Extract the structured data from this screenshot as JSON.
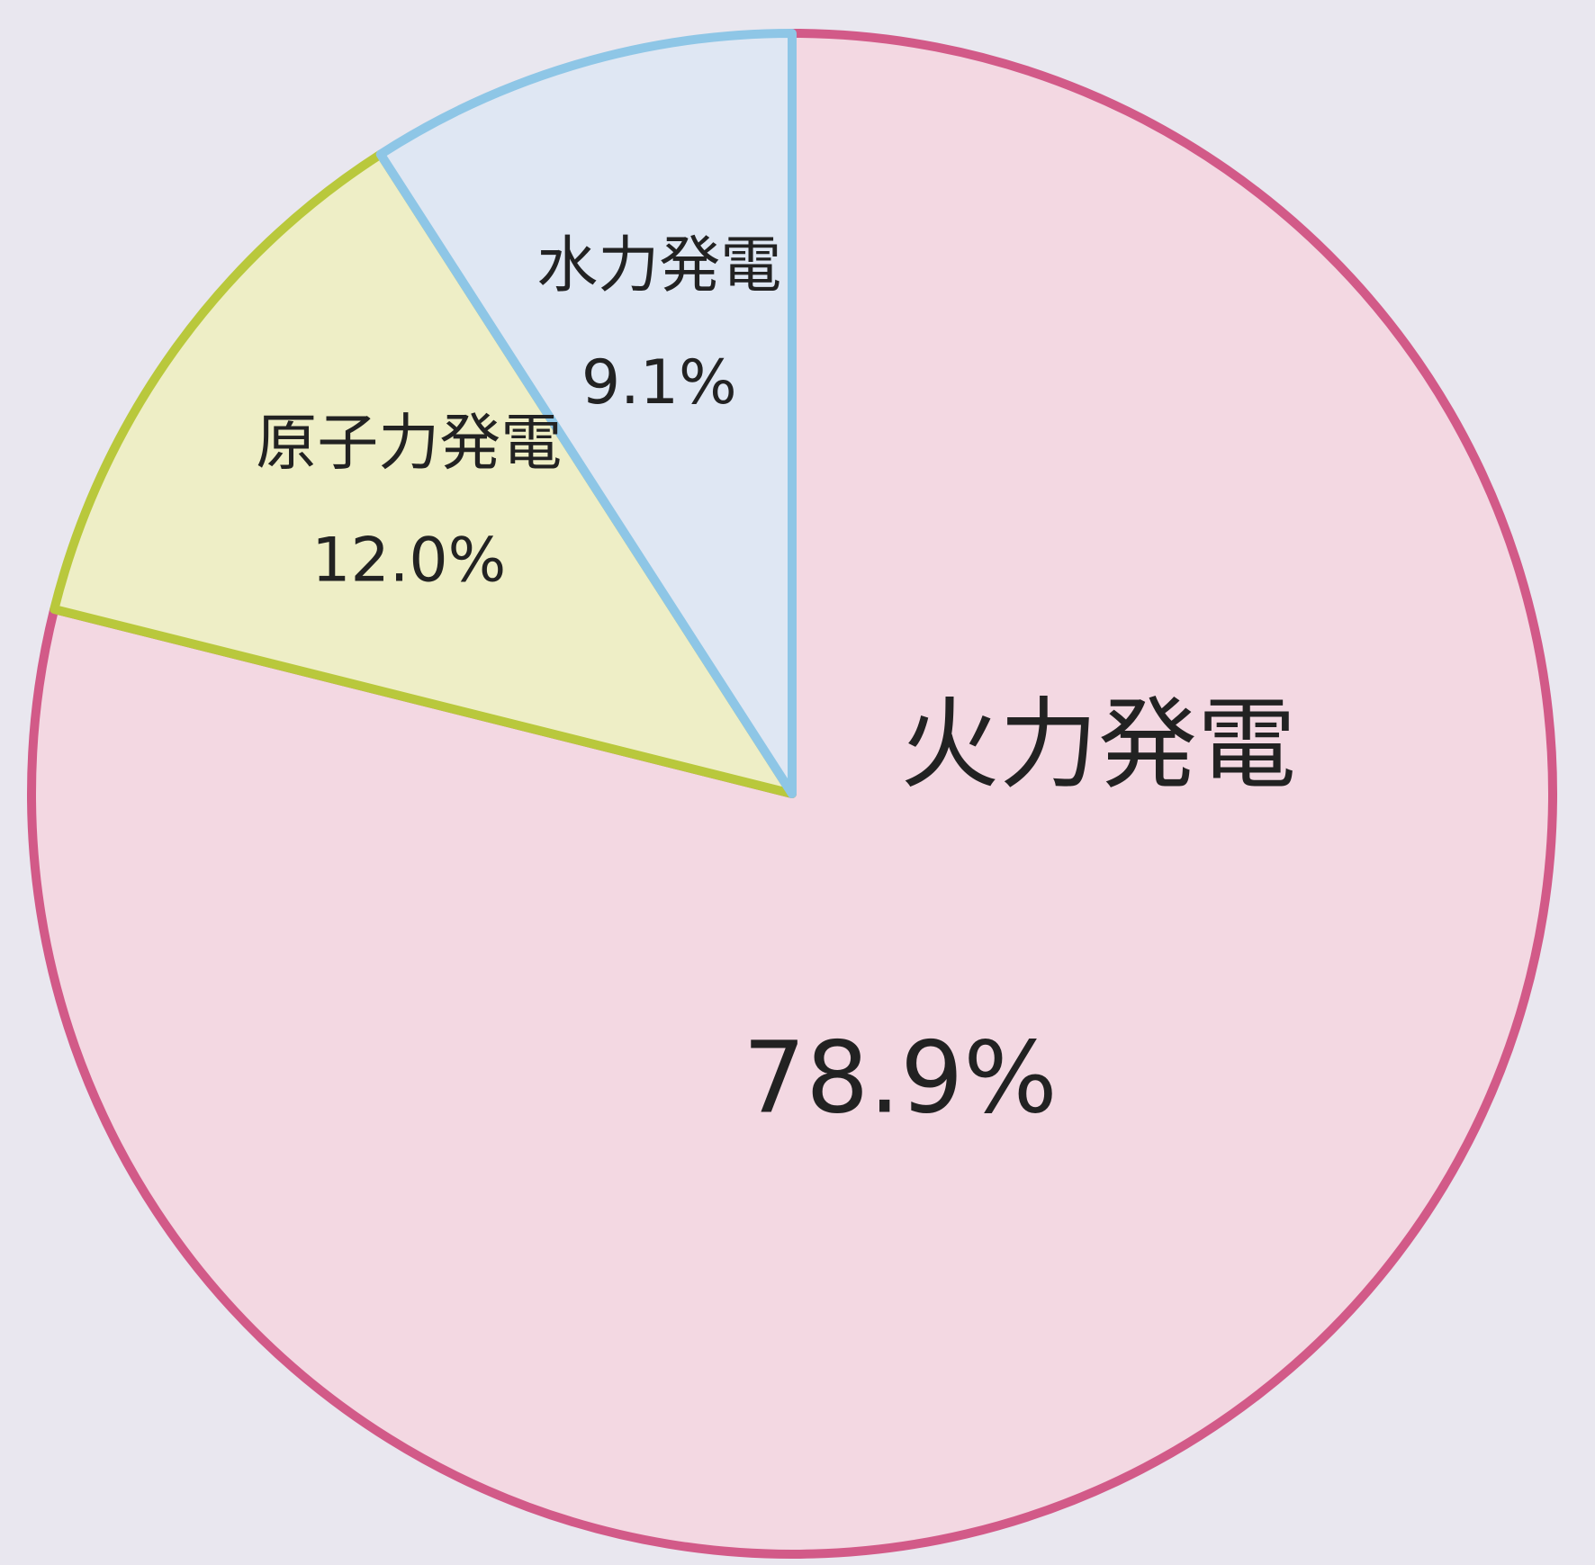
{
  "chart_data": {
    "type": "pie",
    "categories": [
      "火力発電",
      "原子力発電",
      "水力発電"
    ],
    "values": [
      78.9,
      12.0,
      9.1
    ],
    "value_labels": [
      "78.9%",
      "12.0%",
      "9.1%"
    ],
    "colors": [
      "#f3d8e2",
      "#eeeec6",
      "#dfe7f3"
    ],
    "edge_colors": [
      "#d25a88",
      "#b9c83c",
      "#8ec6e6"
    ]
  }
}
